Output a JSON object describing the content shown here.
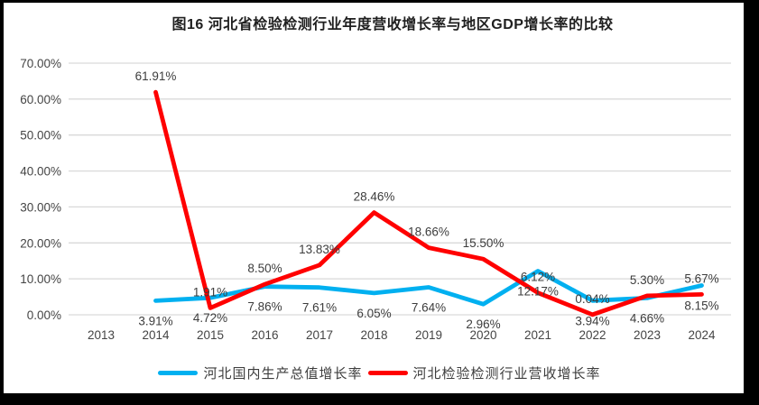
{
  "colors": {
    "background": "#FFFFFF",
    "frame_border": "#000000",
    "gridline": "#D9D9D9",
    "axis_text": "#444444",
    "title_text": "#1F1F1F",
    "gdp_line": "#00B0F0",
    "revenue_line": "#FF0000"
  },
  "chart_data": {
    "type": "line",
    "title": "图16 河北省检验检测行业年度营收增长率与地区GDP增长率的比较",
    "categories": [
      "2013",
      "2014",
      "2015",
      "2016",
      "2017",
      "2018",
      "2019",
      "2020",
      "2021",
      "2022",
      "2023",
      "2024"
    ],
    "series": [
      {
        "name": "河北国内生产总值增长率",
        "color": "#00B0F0",
        "label_position": "below",
        "values": [
          null,
          3.91,
          4.72,
          7.86,
          7.61,
          6.05,
          7.64,
          2.96,
          12.17,
          3.94,
          4.66,
          8.15
        ]
      },
      {
        "name": "河北检验检测行业营收增长率",
        "color": "#FF0000",
        "label_position": "above",
        "values": [
          null,
          61.91,
          1.91,
          8.5,
          13.83,
          28.46,
          18.66,
          15.5,
          6.12,
          0.04,
          5.3,
          5.67
        ]
      }
    ],
    "xlabel": "",
    "ylabel": "",
    "ylim": [
      0,
      70
    ],
    "ytick_step": 10,
    "ytick_labels": [
      "0.00%",
      "10.00%",
      "20.00%",
      "30.00%",
      "40.00%",
      "50.00%",
      "60.00%",
      "70.00%"
    ],
    "grid": true,
    "data_labels": true,
    "legend_position": "bottom"
  }
}
